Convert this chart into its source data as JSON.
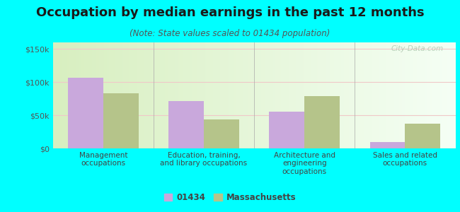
{
  "title": "Occupation by median earnings in the past 12 months",
  "subtitle": "(Note: State values scaled to 01434 population)",
  "categories": [
    "Management\noccupations",
    "Education, training,\nand library occupations",
    "Architecture and\nengineering\noccupations",
    "Sales and related\noccupations"
  ],
  "values_01434": [
    107000,
    72000,
    55000,
    10000
  ],
  "values_mass": [
    83000,
    44000,
    79000,
    37000
  ],
  "color_01434": "#c9a8dc",
  "color_mass": "#b5c48a",
  "ylim": [
    0,
    160000
  ],
  "yticks": [
    0,
    50000,
    100000,
    150000
  ],
  "ytick_labels": [
    "$0",
    "$50k",
    "$100k",
    "$150k"
  ],
  "background_color": "#00ffff",
  "grad_left": "#d8efc0",
  "grad_right": "#f5fff5",
  "watermark": "City-Data.com",
  "legend_01434": "01434",
  "legend_mass": "Massachusetts",
  "bar_width": 0.35,
  "grid_color": "#f0c8c8",
  "title_fontsize": 13,
  "subtitle_fontsize": 8.5,
  "tick_fontsize": 8,
  "cat_fontsize": 7.5
}
